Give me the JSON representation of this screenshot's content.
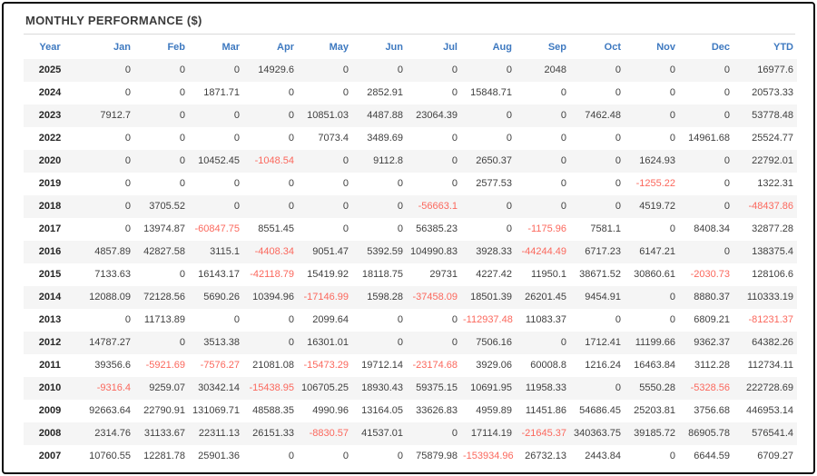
{
  "title": "MONTHLY PERFORMANCE ($)",
  "colors": {
    "header_blue": "#3e79c0",
    "negative_red": "#fb685d",
    "row_stripe": "#f5f5f5",
    "text": "#3f3f3f",
    "frame_border": "#0c0c0c"
  },
  "table": {
    "columns": [
      "Year",
      "Jan",
      "Feb",
      "Mar",
      "Apr",
      "May",
      "Jun",
      "Jul",
      "Aug",
      "Sep",
      "Oct",
      "Nov",
      "Dec",
      "YTD"
    ],
    "rows": [
      {
        "year": "2025",
        "cells": [
          "0",
          "0",
          "0",
          "14929.6",
          "0",
          "0",
          "0",
          "0",
          "2048",
          "0",
          "0",
          "0",
          "16977.6"
        ]
      },
      {
        "year": "2024",
        "cells": [
          "0",
          "0",
          "1871.71",
          "0",
          "0",
          "2852.91",
          "0",
          "15848.71",
          "0",
          "0",
          "0",
          "0",
          "20573.33"
        ]
      },
      {
        "year": "2023",
        "cells": [
          "7912.7",
          "0",
          "0",
          "0",
          "10851.03",
          "4487.88",
          "23064.39",
          "0",
          "0",
          "7462.48",
          "0",
          "0",
          "53778.48"
        ]
      },
      {
        "year": "2022",
        "cells": [
          "0",
          "0",
          "0",
          "0",
          "7073.4",
          "3489.69",
          "0",
          "0",
          "0",
          "0",
          "0",
          "14961.68",
          "25524.77"
        ]
      },
      {
        "year": "2020",
        "cells": [
          "0",
          "0",
          "10452.45",
          "-1048.54",
          "0",
          "9112.8",
          "0",
          "2650.37",
          "0",
          "0",
          "1624.93",
          "0",
          "22792.01"
        ]
      },
      {
        "year": "2019",
        "cells": [
          "0",
          "0",
          "0",
          "0",
          "0",
          "0",
          "0",
          "2577.53",
          "0",
          "0",
          "-1255.22",
          "0",
          "1322.31"
        ]
      },
      {
        "year": "2018",
        "cells": [
          "0",
          "3705.52",
          "0",
          "0",
          "0",
          "0",
          "-56663.1",
          "0",
          "0",
          "0",
          "4519.72",
          "0",
          "-48437.86"
        ]
      },
      {
        "year": "2017",
        "cells": [
          "0",
          "13974.87",
          "-60847.75",
          "8551.45",
          "0",
          "0",
          "56385.23",
          "0",
          "-1175.96",
          "7581.1",
          "0",
          "8408.34",
          "32877.28"
        ]
      },
      {
        "year": "2016",
        "cells": [
          "4857.89",
          "42827.58",
          "3115.1",
          "-4408.34",
          "9051.47",
          "5392.59",
          "104990.83",
          "3928.33",
          "-44244.49",
          "6717.23",
          "6147.21",
          "0",
          "138375.4"
        ]
      },
      {
        "year": "2015",
        "cells": [
          "7133.63",
          "0",
          "16143.17",
          "-42118.79",
          "15419.92",
          "18118.75",
          "29731",
          "4227.42",
          "11950.1",
          "38671.52",
          "30860.61",
          "-2030.73",
          "128106.6"
        ]
      },
      {
        "year": "2014",
        "cells": [
          "12088.09",
          "72128.56",
          "5690.26",
          "10394.96",
          "-17146.99",
          "1598.28",
          "-37458.09",
          "18501.39",
          "26201.45",
          "9454.91",
          "0",
          "8880.37",
          "110333.19"
        ]
      },
      {
        "year": "2013",
        "cells": [
          "0",
          "11713.89",
          "0",
          "0",
          "2099.64",
          "0",
          "0",
          "-112937.48",
          "11083.37",
          "0",
          "0",
          "6809.21",
          "-81231.37"
        ]
      },
      {
        "year": "2012",
        "cells": [
          "14787.27",
          "0",
          "3513.38",
          "0",
          "16301.01",
          "0",
          "0",
          "7506.16",
          "0",
          "1712.41",
          "11199.66",
          "9362.37",
          "64382.26"
        ]
      },
      {
        "year": "2011",
        "cells": [
          "39356.6",
          "-5921.69",
          "-7576.27",
          "21081.08",
          "-15473.29",
          "19712.14",
          "-23174.68",
          "3929.06",
          "60008.8",
          "1216.24",
          "16463.84",
          "3112.28",
          "112734.11"
        ]
      },
      {
        "year": "2010",
        "cells": [
          "-9316.4",
          "9259.07",
          "30342.14",
          "-15438.95",
          "106705.25",
          "18930.43",
          "59375.15",
          "10691.95",
          "11958.33",
          "0",
          "5550.28",
          "-5328.56",
          "222728.69"
        ]
      },
      {
        "year": "2009",
        "cells": [
          "92663.64",
          "22790.91",
          "131069.71",
          "48588.35",
          "4990.96",
          "13164.05",
          "33626.83",
          "4959.89",
          "11451.86",
          "54686.45",
          "25203.81",
          "3756.68",
          "446953.14"
        ]
      },
      {
        "year": "2008",
        "cells": [
          "2314.76",
          "31133.67",
          "22311.13",
          "26151.33",
          "-8830.57",
          "41537.01",
          "0",
          "17114.19",
          "-21645.37",
          "340363.75",
          "39185.72",
          "86905.78",
          "576541.4"
        ]
      },
      {
        "year": "2007",
        "cells": [
          "10760.55",
          "12281.78",
          "25901.36",
          "0",
          "0",
          "0",
          "75879.98",
          "-153934.96",
          "26732.13",
          "2443.84",
          "0",
          "6644.59",
          "6709.27"
        ]
      }
    ]
  }
}
